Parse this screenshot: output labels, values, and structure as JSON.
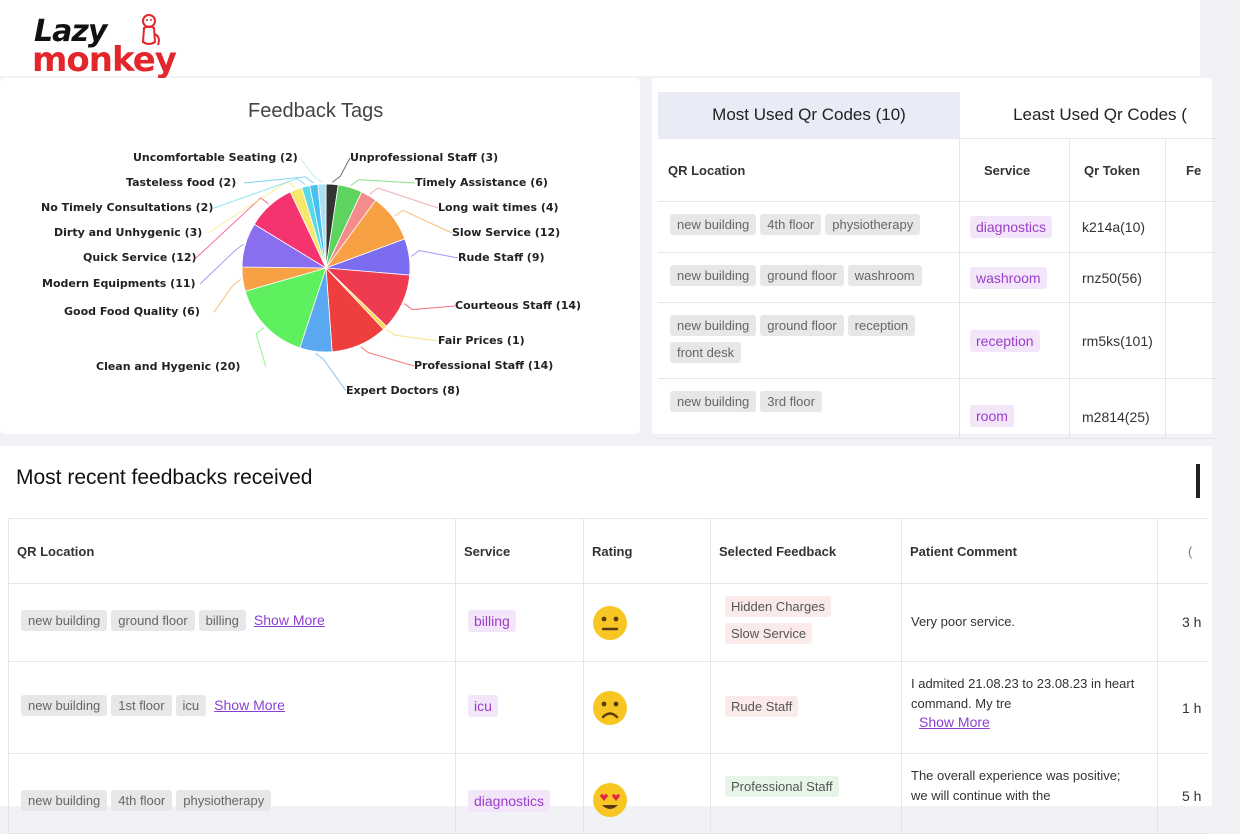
{
  "logo": {
    "line1": "Lazy",
    "line2": "monkey"
  },
  "feedback_tags": {
    "title": "Feedback Tags",
    "labels": [
      "Unprofessional Staff (3)",
      "Timely Assistance (6)",
      "Long wait times (4)",
      "Slow Service (12)",
      "Rude Staff (9)",
      "Courteous Staff (14)",
      "Fair Prices (1)",
      "Professional Staff (14)",
      "Expert Doctors (8)",
      "Clean and Hygenic (20)",
      "Good Food Quality (6)",
      "Modern Equipments (11)",
      "Quick Service (12)",
      "Dirty and Unhygenic (3)",
      "No Timely Consultations (2)",
      "Tasteless food (2)",
      "Uncomfortable Seating (2)"
    ]
  },
  "chart_data": {
    "type": "pie",
    "title": "Feedback Tags",
    "categories": [
      "Unprofessional Staff",
      "Timely Assistance",
      "Long wait times",
      "Slow Service",
      "Rude Staff",
      "Courteous Staff",
      "Fair Prices",
      "Professional Staff",
      "Expert Doctors",
      "Clean and Hygenic",
      "Good Food Quality",
      "Modern Equipments",
      "Quick Service",
      "Dirty and Unhygenic",
      "No Timely Consultations",
      "Tasteless food",
      "Uncomfortable Seating"
    ],
    "values": [
      3,
      6,
      4,
      12,
      9,
      14,
      1,
      14,
      8,
      20,
      6,
      11,
      12,
      3,
      2,
      2,
      2
    ],
    "colors": [
      "#333333",
      "#5fd35f",
      "#f58c8c",
      "#f7a044",
      "#7b6cf0",
      "#ef3b50",
      "#f7d64a",
      "#ee3e3e",
      "#5aa8f0",
      "#5ef05e",
      "#f7a044",
      "#8a6ef0",
      "#f5336e",
      "#f7e86b",
      "#5ad8e8",
      "#48c0f0",
      "#aae0f0"
    ],
    "legend": "none"
  },
  "qr_codes": {
    "tabs": [
      "Most Used Qr Codes (10)",
      "Least Used Qr Codes ("
    ],
    "columns": [
      "QR Location",
      "Service",
      "Qr Token",
      "Fe"
    ],
    "rows": [
      {
        "location": [
          "new building",
          "4th floor",
          "physiotherapy"
        ],
        "service": "diagnostics",
        "token": "k214a(10)"
      },
      {
        "location": [
          "new building",
          "ground floor",
          "washroom"
        ],
        "service": "washroom",
        "token": "rnz50(56)"
      },
      {
        "location": [
          "new building",
          "ground floor",
          "reception",
          "front desk"
        ],
        "service": "reception",
        "token": "rm5ks(101)"
      },
      {
        "location": [
          "new building",
          "3rd floor"
        ],
        "service": "room",
        "token": "m2814(25)"
      }
    ]
  },
  "recent": {
    "title": "Most recent feedbacks received",
    "columns": [
      "QR Location",
      "Service",
      "Rating",
      "Selected Feedback",
      "Patient Comment",
      "("
    ],
    "show_more": "Show More",
    "rows": [
      {
        "location": [
          "new building",
          "ground floor",
          "billing"
        ],
        "service": "billing",
        "rating": "neutral",
        "feedback": [
          "Hidden Charges",
          "Slow Service"
        ],
        "feedback_type": "neg",
        "comment": "Very poor service.",
        "time": "3 h"
      },
      {
        "location": [
          "new building",
          "1st floor",
          "icu"
        ],
        "service": "icu",
        "rating": "sad",
        "feedback": [
          "Rude Staff"
        ],
        "feedback_type": "neg",
        "comment": "I admited 21.08.23 to 23.08.23 in heart command. My tre",
        "time": "1 h"
      },
      {
        "location": [
          "new building",
          "4th floor",
          "physiotherapy"
        ],
        "service": "diagnostics",
        "rating": "love",
        "feedback": [
          "Professional Staff"
        ],
        "feedback_type": "pos",
        "comment": "The overall experience was positive; we will continue with the",
        "time": "5 h"
      }
    ]
  }
}
